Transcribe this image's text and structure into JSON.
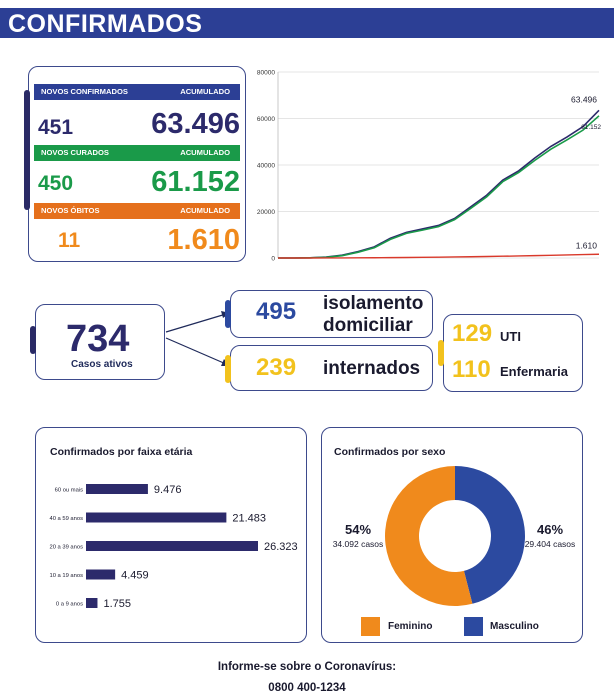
{
  "header": {
    "title": "CONFIRMADOS"
  },
  "counters": {
    "confirmed": {
      "label": "NOVOS CONFIRMADOS",
      "acc_label": "ACUMULADO",
      "new": "451",
      "total": "63.496",
      "band_color": "#2c3f95",
      "value_color": "#2c2a6b"
    },
    "recovered": {
      "label": "NOVOS CURADOS",
      "acc_label": "ACUMULADO",
      "new": "450",
      "total": "61.152",
      "band_color": "#1a9a49",
      "value_color": "#1a9a49"
    },
    "deaths": {
      "label": "NOVOS ÓBITOS",
      "acc_label": "ACUMULADO",
      "new": "11",
      "total": "1.610",
      "band_color": "#e5701c",
      "value_color": "#f08a1c"
    }
  },
  "active": {
    "total": "734",
    "total_label": "Casos ativos",
    "home_isolation": {
      "value": "495",
      "label_line1": "isolamento",
      "label_line2": "domiciliar"
    },
    "hospitalized": {
      "value": "239",
      "label": "internados"
    },
    "icu": {
      "value": "129",
      "label": "UTI"
    },
    "ward": {
      "value": "110",
      "label": "Enfermaria"
    }
  },
  "footer": {
    "line1": "Informe-se sobre o Coronavírus:",
    "line2": "0800 400-1234"
  },
  "chart_data": [
    {
      "type": "line",
      "title": "",
      "xlabel": "",
      "ylabel": "",
      "ylim": [
        0,
        80000
      ],
      "yticks": [
        "0",
        "20000",
        "40000",
        "60000",
        "80000"
      ],
      "grid": true,
      "x": [
        0,
        5,
        10,
        15,
        20,
        25,
        30,
        35,
        40,
        45,
        50,
        55,
        60,
        65,
        70,
        75,
        80,
        85,
        90,
        95,
        100
      ],
      "series": [
        {
          "color": "#2c2a6b",
          "values": [
            0,
            0,
            100,
            400,
            1200,
            2800,
            4800,
            8500,
            11000,
            12500,
            14000,
            17000,
            22000,
            27000,
            33500,
            37500,
            43000,
            48000,
            52000,
            56500,
            63496
          ]
        },
        {
          "color": "#1a9a49",
          "values": [
            0,
            0,
            80,
            300,
            1000,
            2500,
            4400,
            8000,
            10600,
            12000,
            13500,
            16500,
            21300,
            26300,
            32800,
            36800,
            42000,
            46800,
            50800,
            55000,
            61152
          ]
        },
        {
          "color": "#d9392b",
          "values": [
            0,
            0,
            5,
            15,
            40,
            70,
            110,
            160,
            220,
            290,
            360,
            440,
            540,
            640,
            760,
            880,
            1020,
            1170,
            1320,
            1460,
            1610
          ]
        }
      ],
      "end_labels": [
        "63.496",
        "61.152",
        "1.610"
      ]
    },
    {
      "type": "bar",
      "title": "Confirmados por faixa etária",
      "orientation": "horizontal",
      "color": "#2c2a6b",
      "categories": [
        "60 ou mais",
        "40 a 59 anos",
        "20 a 39 anos",
        "10 a 19 anos",
        "0 a 9 anos"
      ],
      "values": [
        9476,
        21483,
        26323,
        4459,
        1755
      ],
      "value_labels": [
        "9.476",
        "21.483",
        "26.323",
        "4.459",
        "1.755"
      ]
    },
    {
      "type": "pie",
      "title": "Confirmados por sexo",
      "donut": true,
      "categories": [
        "Feminino",
        "Masculino"
      ],
      "values": [
        54,
        46
      ],
      "colors": [
        "#f08a1c",
        "#2c4aa0"
      ],
      "percent_labels": [
        "54%",
        "46%"
      ],
      "case_labels": [
        "34.092 casos",
        "29.404 casos"
      ]
    }
  ]
}
